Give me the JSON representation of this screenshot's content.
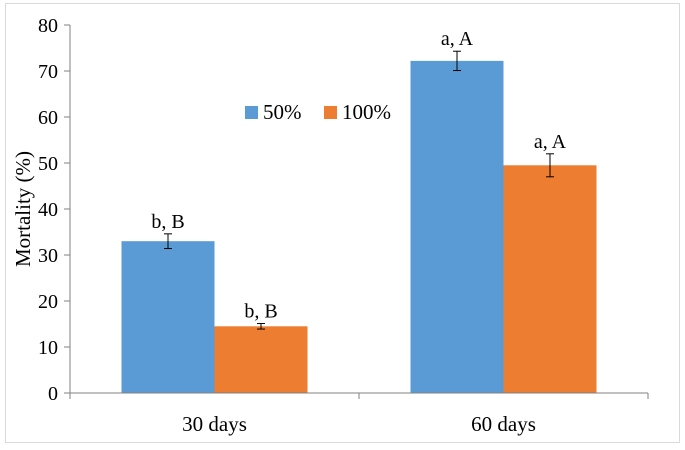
{
  "chart_data": {
    "type": "bar",
    "title": "",
    "xlabel": "",
    "ylabel": "Mortality (%)",
    "ylim": [
      0,
      80
    ],
    "yticks": [
      0,
      10,
      20,
      30,
      40,
      50,
      60,
      70,
      80
    ],
    "categories": [
      "30 days",
      "60 days"
    ],
    "grid": false,
    "legend_position": "center",
    "series": [
      {
        "name": "50%",
        "color": "#5b9bd5",
        "values": [
          33,
          72.2
        ],
        "errors": [
          1.6,
          2.1
        ],
        "labels": [
          "b, B",
          "a, A"
        ]
      },
      {
        "name": "100%",
        "color": "#ed7d31",
        "values": [
          14.5,
          49.5
        ],
        "errors": [
          0.6,
          2.5
        ],
        "labels": [
          "b, B",
          "a, A"
        ]
      }
    ]
  }
}
